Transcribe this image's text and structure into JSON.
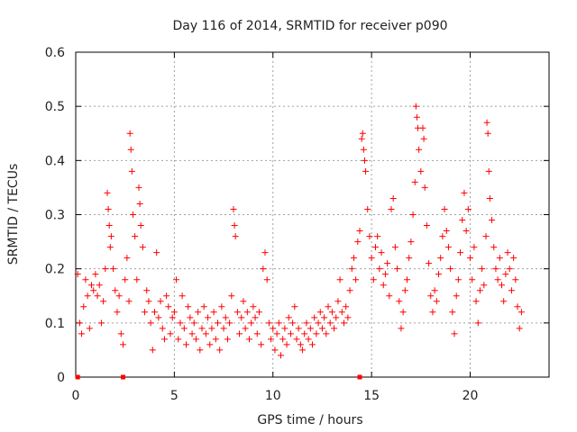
{
  "chart_data": {
    "type": "scatter",
    "title": "Day 116 of 2014, SRMTID for receiver p090",
    "xlabel": "GPS time / hours",
    "ylabel": "SRMTID / TECUs",
    "xlim": [
      0,
      24
    ],
    "ylim": [
      0,
      0.6
    ],
    "xticks": [
      "0",
      "5",
      "10",
      "15",
      "20"
    ],
    "yticks": [
      "0",
      "0.1",
      "0.2",
      "0.3",
      "0.4",
      "0.5",
      "0.6"
    ],
    "grid": true,
    "marker": "plus",
    "color": "#ff0000",
    "zero_marks_x": [
      0.1,
      2.4,
      14.4
    ],
    "series": [
      {
        "name": "SRMTID",
        "points": [
          [
            0.1,
            0.19
          ],
          [
            0.2,
            0.1
          ],
          [
            0.3,
            0.08
          ],
          [
            0.4,
            0.13
          ],
          [
            0.5,
            0.18
          ],
          [
            0.6,
            0.15
          ],
          [
            0.7,
            0.09
          ],
          [
            0.8,
            0.17
          ],
          [
            0.9,
            0.16
          ],
          [
            1.0,
            0.19
          ],
          [
            1.1,
            0.15
          ],
          [
            1.2,
            0.17
          ],
          [
            1.3,
            0.1
          ],
          [
            1.4,
            0.14
          ],
          [
            1.5,
            0.2
          ],
          [
            1.6,
            0.34
          ],
          [
            1.65,
            0.31
          ],
          [
            1.7,
            0.28
          ],
          [
            1.75,
            0.24
          ],
          [
            1.8,
            0.26
          ],
          [
            1.9,
            0.2
          ],
          [
            2.0,
            0.16
          ],
          [
            2.1,
            0.12
          ],
          [
            2.2,
            0.15
          ],
          [
            2.3,
            0.08
          ],
          [
            2.4,
            0.06
          ],
          [
            2.5,
            0.18
          ],
          [
            2.6,
            0.22
          ],
          [
            2.7,
            0.14
          ],
          [
            2.75,
            0.45
          ],
          [
            2.8,
            0.42
          ],
          [
            2.85,
            0.38
          ],
          [
            2.9,
            0.3
          ],
          [
            3.0,
            0.26
          ],
          [
            3.1,
            0.18
          ],
          [
            3.2,
            0.35
          ],
          [
            3.25,
            0.32
          ],
          [
            3.3,
            0.28
          ],
          [
            3.4,
            0.24
          ],
          [
            3.5,
            0.12
          ],
          [
            3.6,
            0.16
          ],
          [
            3.7,
            0.14
          ],
          [
            3.8,
            0.1
          ],
          [
            3.9,
            0.05
          ],
          [
            4.0,
            0.12
          ],
          [
            4.1,
            0.23
          ],
          [
            4.2,
            0.11
          ],
          [
            4.3,
            0.14
          ],
          [
            4.4,
            0.09
          ],
          [
            4.5,
            0.07
          ],
          [
            4.6,
            0.15
          ],
          [
            4.7,
            0.13
          ],
          [
            4.8,
            0.08
          ],
          [
            4.9,
            0.11
          ],
          [
            5.0,
            0.12
          ],
          [
            5.1,
            0.18
          ],
          [
            5.2,
            0.07
          ],
          [
            5.3,
            0.1
          ],
          [
            5.4,
            0.15
          ],
          [
            5.5,
            0.09
          ],
          [
            5.6,
            0.06
          ],
          [
            5.7,
            0.13
          ],
          [
            5.8,
            0.11
          ],
          [
            5.9,
            0.08
          ],
          [
            6.0,
            0.1
          ],
          [
            6.1,
            0.07
          ],
          [
            6.2,
            0.12
          ],
          [
            6.3,
            0.05
          ],
          [
            6.4,
            0.09
          ],
          [
            6.5,
            0.13
          ],
          [
            6.6,
            0.08
          ],
          [
            6.7,
            0.11
          ],
          [
            6.8,
            0.06
          ],
          [
            6.9,
            0.09
          ],
          [
            7.0,
            0.12
          ],
          [
            7.1,
            0.07
          ],
          [
            7.2,
            0.1
          ],
          [
            7.3,
            0.05
          ],
          [
            7.4,
            0.13
          ],
          [
            7.5,
            0.09
          ],
          [
            7.6,
            0.11
          ],
          [
            7.7,
            0.07
          ],
          [
            7.8,
            0.1
          ],
          [
            7.9,
            0.15
          ],
          [
            8.0,
            0.31
          ],
          [
            8.05,
            0.28
          ],
          [
            8.1,
            0.26
          ],
          [
            8.2,
            0.12
          ],
          [
            8.3,
            0.08
          ],
          [
            8.4,
            0.11
          ],
          [
            8.5,
            0.14
          ],
          [
            8.6,
            0.09
          ],
          [
            8.7,
            0.12
          ],
          [
            8.8,
            0.07
          ],
          [
            8.9,
            0.1
          ],
          [
            9.0,
            0.13
          ],
          [
            9.1,
            0.11
          ],
          [
            9.2,
            0.08
          ],
          [
            9.3,
            0.12
          ],
          [
            9.4,
            0.06
          ],
          [
            9.5,
            0.2
          ],
          [
            9.6,
            0.23
          ],
          [
            9.7,
            0.18
          ],
          [
            9.8,
            0.1
          ],
          [
            9.9,
            0.07
          ],
          [
            10.0,
            0.09
          ],
          [
            10.1,
            0.05
          ],
          [
            10.2,
            0.08
          ],
          [
            10.3,
            0.1
          ],
          [
            10.4,
            0.04
          ],
          [
            10.5,
            0.07
          ],
          [
            10.6,
            0.09
          ],
          [
            10.7,
            0.06
          ],
          [
            10.8,
            0.11
          ],
          [
            10.9,
            0.08
          ],
          [
            11.0,
            0.1
          ],
          [
            11.1,
            0.13
          ],
          [
            11.2,
            0.07
          ],
          [
            11.3,
            0.09
          ],
          [
            11.4,
            0.06
          ],
          [
            11.5,
            0.05
          ],
          [
            11.6,
            0.08
          ],
          [
            11.7,
            0.1
          ],
          [
            11.8,
            0.07
          ],
          [
            11.9,
            0.09
          ],
          [
            12.0,
            0.06
          ],
          [
            12.1,
            0.11
          ],
          [
            12.2,
            0.08
          ],
          [
            12.3,
            0.1
          ],
          [
            12.4,
            0.12
          ],
          [
            12.5,
            0.09
          ],
          [
            12.6,
            0.11
          ],
          [
            12.7,
            0.08
          ],
          [
            12.8,
            0.13
          ],
          [
            12.9,
            0.1
          ],
          [
            13.0,
            0.12
          ],
          [
            13.1,
            0.09
          ],
          [
            13.2,
            0.11
          ],
          [
            13.3,
            0.14
          ],
          [
            13.4,
            0.18
          ],
          [
            13.5,
            0.12
          ],
          [
            13.6,
            0.1
          ],
          [
            13.7,
            0.13
          ],
          [
            13.8,
            0.11
          ],
          [
            13.9,
            0.16
          ],
          [
            14.0,
            0.2
          ],
          [
            14.1,
            0.22
          ],
          [
            14.2,
            0.18
          ],
          [
            14.3,
            0.25
          ],
          [
            14.4,
            0.27
          ],
          [
            14.5,
            0.44
          ],
          [
            14.55,
            0.45
          ],
          [
            14.6,
            0.42
          ],
          [
            14.65,
            0.4
          ],
          [
            14.7,
            0.38
          ],
          [
            14.8,
            0.31
          ],
          [
            14.9,
            0.26
          ],
          [
            15.0,
            0.22
          ],
          [
            15.1,
            0.18
          ],
          [
            15.2,
            0.24
          ],
          [
            15.3,
            0.26
          ],
          [
            15.4,
            0.2
          ],
          [
            15.5,
            0.23
          ],
          [
            15.6,
            0.17
          ],
          [
            15.7,
            0.19
          ],
          [
            15.8,
            0.21
          ],
          [
            15.9,
            0.15
          ],
          [
            16.0,
            0.31
          ],
          [
            16.1,
            0.33
          ],
          [
            16.2,
            0.24
          ],
          [
            16.3,
            0.2
          ],
          [
            16.4,
            0.14
          ],
          [
            16.5,
            0.09
          ],
          [
            16.6,
            0.12
          ],
          [
            16.7,
            0.16
          ],
          [
            16.8,
            0.18
          ],
          [
            16.9,
            0.22
          ],
          [
            17.0,
            0.25
          ],
          [
            17.1,
            0.3
          ],
          [
            17.2,
            0.36
          ],
          [
            17.25,
            0.5
          ],
          [
            17.3,
            0.48
          ],
          [
            17.35,
            0.46
          ],
          [
            17.4,
            0.42
          ],
          [
            17.5,
            0.38
          ],
          [
            17.6,
            0.46
          ],
          [
            17.65,
            0.44
          ],
          [
            17.7,
            0.35
          ],
          [
            17.8,
            0.28
          ],
          [
            17.9,
            0.21
          ],
          [
            18.0,
            0.15
          ],
          [
            18.1,
            0.12
          ],
          [
            18.2,
            0.16
          ],
          [
            18.3,
            0.14
          ],
          [
            18.4,
            0.19
          ],
          [
            18.5,
            0.22
          ],
          [
            18.6,
            0.26
          ],
          [
            18.7,
            0.31
          ],
          [
            18.8,
            0.27
          ],
          [
            18.9,
            0.24
          ],
          [
            19.0,
            0.2
          ],
          [
            19.1,
            0.12
          ],
          [
            19.2,
            0.08
          ],
          [
            19.3,
            0.15
          ],
          [
            19.4,
            0.18
          ],
          [
            19.5,
            0.23
          ],
          [
            19.6,
            0.29
          ],
          [
            19.7,
            0.34
          ],
          [
            19.8,
            0.27
          ],
          [
            19.9,
            0.31
          ],
          [
            20.0,
            0.22
          ],
          [
            20.1,
            0.18
          ],
          [
            20.2,
            0.24
          ],
          [
            20.3,
            0.14
          ],
          [
            20.4,
            0.1
          ],
          [
            20.5,
            0.16
          ],
          [
            20.6,
            0.2
          ],
          [
            20.7,
            0.17
          ],
          [
            20.8,
            0.26
          ],
          [
            20.85,
            0.47
          ],
          [
            20.9,
            0.45
          ],
          [
            20.95,
            0.38
          ],
          [
            21.0,
            0.33
          ],
          [
            21.1,
            0.29
          ],
          [
            21.2,
            0.24
          ],
          [
            21.3,
            0.2
          ],
          [
            21.4,
            0.18
          ],
          [
            21.5,
            0.22
          ],
          [
            21.6,
            0.17
          ],
          [
            21.7,
            0.14
          ],
          [
            21.8,
            0.19
          ],
          [
            21.9,
            0.23
          ],
          [
            22.0,
            0.2
          ],
          [
            22.1,
            0.16
          ],
          [
            22.2,
            0.22
          ],
          [
            22.3,
            0.18
          ],
          [
            22.4,
            0.13
          ],
          [
            22.5,
            0.09
          ],
          [
            22.6,
            0.12
          ]
        ]
      }
    ]
  }
}
